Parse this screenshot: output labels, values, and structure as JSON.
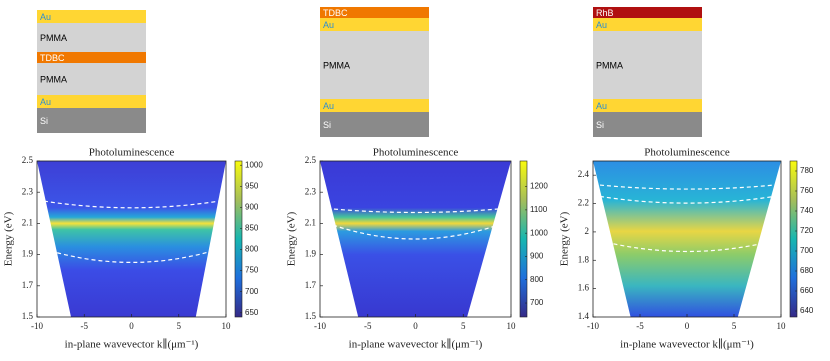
{
  "panels": [
    {
      "layers": [
        "Au",
        "PMMA",
        "TDBC",
        "PMMA",
        "Au",
        "Si"
      ],
      "plot": {
        "title": "Photoluminescence",
        "xlabel": "in-plane wavevector k∥(μm⁻¹)",
        "ylabel": "Energy (eV)",
        "xlim": [
          -10,
          10
        ],
        "xticks": [
          -10,
          -5,
          0,
          5,
          10
        ],
        "ylim": [
          1.5,
          2.5
        ],
        "yticks": [
          1.5,
          1.7,
          1.9,
          2.1,
          2.3,
          2.5
        ],
        "colorbar": {
          "lim": [
            640,
            1010
          ],
          "ticks": [
            650,
            700,
            750,
            800,
            850,
            900,
            950,
            1000
          ]
        }
      }
    },
    {
      "layers": [
        "TDBC",
        "Au",
        "PMMA",
        "Au",
        "Si"
      ],
      "plot": {
        "title": "Photoluminescence",
        "xlabel": "in-plane wavevector k∥(μm⁻¹)",
        "ylabel": "Energy (eV)",
        "xlim": [
          -10,
          10
        ],
        "xticks": [
          -10,
          -5,
          0,
          5,
          10
        ],
        "ylim": [
          1.5,
          2.5
        ],
        "yticks": [
          1.5,
          1.7,
          1.9,
          2.1,
          2.3,
          2.5
        ],
        "colorbar": {
          "lim": [
            640,
            1310
          ],
          "ticks": [
            700,
            800,
            900,
            1000,
            1100,
            1200
          ]
        }
      }
    },
    {
      "layers": [
        "RhB",
        "Au",
        "PMMA",
        "Au",
        "Si"
      ],
      "plot": {
        "title": "Photoluminescence",
        "xlabel": "in-plane wavevector k∥(μm⁻¹)",
        "ylabel": "Energy (eV)",
        "xlim": [
          -10,
          10
        ],
        "xticks": [
          -10,
          -5,
          0,
          5,
          10
        ],
        "ylim": [
          1.4,
          2.5
        ],
        "yticks": [
          1.4,
          1.6,
          1.8,
          2,
          2.2,
          2.4
        ],
        "colorbar": {
          "lim": [
            634,
            790
          ],
          "ticks": [
            640,
            660,
            680,
            700,
            720,
            740,
            760,
            780
          ]
        }
      }
    }
  ]
}
